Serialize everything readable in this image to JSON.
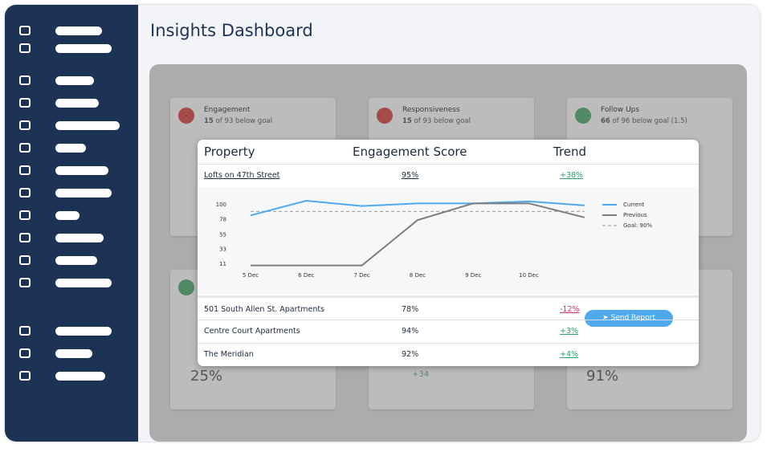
{
  "header": {
    "title": "Insights Dashboard"
  },
  "cards": [
    {
      "title": "Engagement",
      "count": "15",
      "summary": "of 93 below goal",
      "status": "bad"
    },
    {
      "title": "Responsiveness",
      "count": "15",
      "summary": "of 93 below goal",
      "status": "bad"
    },
    {
      "title": "Follow Ups",
      "count": "66",
      "summary": "of 96 below goal (1.5)",
      "status": "good"
    }
  ],
  "bottom_cards": [
    "25%",
    "+34",
    "91%"
  ],
  "table": {
    "columns": [
      "Property",
      "Engagement Score",
      "Trend"
    ],
    "rows": [
      [
        "Lofts on 47th Street",
        "95%",
        "+38%"
      ],
      [
        "501 South Allen St. Apartments",
        "78%",
        "-12%"
      ],
      [
        "Centre Court Apartments",
        "94%",
        "+3%"
      ],
      [
        "The Meridian",
        "92%",
        "+4%"
      ]
    ]
  },
  "chart": {
    "type": "line",
    "categories": [
      "5 Dec",
      "6 Dec",
      "7 Dec",
      "8 Dec",
      "9 Dec",
      "10 Dec",
      null
    ],
    "series": [
      {
        "name": "Current",
        "color": "#4ea9ef",
        "values": [
          84,
          106,
          98,
          102,
          102,
          105,
          99
        ]
      },
      {
        "name": "Previous",
        "color": "#7d7d7d",
        "values": [
          9,
          9,
          9,
          77,
          102,
          102,
          81
        ]
      }
    ],
    "goal": 90,
    "goal_label": "Goal: 90%",
    "ylim": [
      5,
      110
    ],
    "yticks": [
      100,
      78,
      55,
      33,
      11
    ]
  },
  "button": {
    "label": "Send Report"
  }
}
